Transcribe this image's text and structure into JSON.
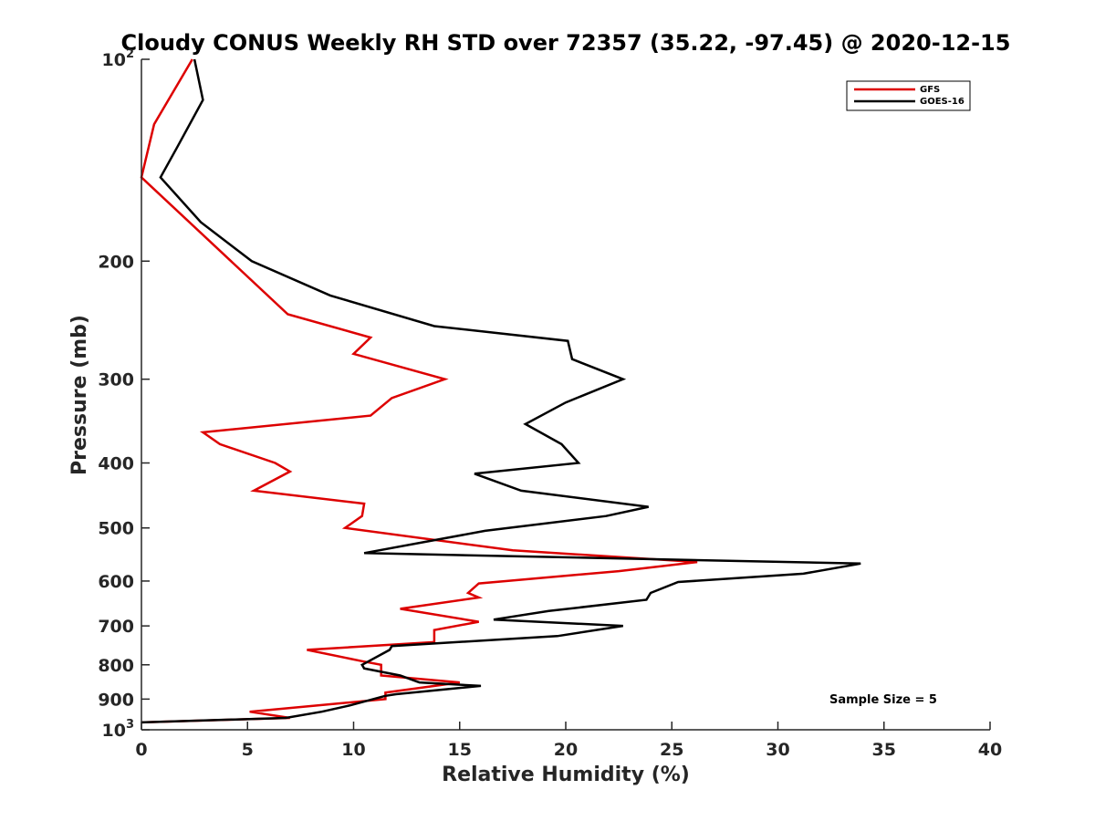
{
  "chart_data": {
    "type": "line",
    "title": "Cloudy CONUS Weekly RH STD over 72357 (35.22, -97.45) @ 2020-12-15",
    "xlabel": "Relative Humidity (%)",
    "ylabel": "Pressure (mb)",
    "xlim": [
      0,
      40
    ],
    "ylim": [
      100,
      1000
    ],
    "yscale": "log",
    "y_reversed": true,
    "x_ticks": [
      "0",
      "5",
      "10",
      "15",
      "20",
      "25",
      "30",
      "35",
      "40"
    ],
    "y_ticks": [
      {
        "value": 100,
        "label": "10",
        "exp": "2"
      },
      {
        "value": 200,
        "label": "200"
      },
      {
        "value": 300,
        "label": "300"
      },
      {
        "value": 400,
        "label": "400"
      },
      {
        "value": 500,
        "label": "500"
      },
      {
        "value": 600,
        "label": "600"
      },
      {
        "value": 700,
        "label": "700"
      },
      {
        "value": 800,
        "label": "800"
      },
      {
        "value": 900,
        "label": "900"
      },
      {
        "value": 1000,
        "label": "10",
        "exp": "3"
      }
    ],
    "legend_position": "top-right",
    "annotation": "Sample Size = 5",
    "series": [
      {
        "name": "GFS",
        "color": "#dd0000",
        "points": [
          [
            2.4,
            100
          ],
          [
            0.6,
            125
          ],
          [
            0,
            150
          ],
          [
            6.9,
            240
          ],
          [
            10.8,
            260
          ],
          [
            10.0,
            275
          ],
          [
            14.3,
            300
          ],
          [
            11.8,
            320
          ],
          [
            10.8,
            340
          ],
          [
            2.9,
            360
          ],
          [
            3.7,
            375
          ],
          [
            6.3,
            400
          ],
          [
            7.0,
            412
          ],
          [
            5.3,
            440
          ],
          [
            10.5,
            460
          ],
          [
            10.4,
            480
          ],
          [
            9.6,
            500
          ],
          [
            17.5,
            540
          ],
          [
            26.2,
            562
          ],
          [
            22.5,
            580
          ],
          [
            15.9,
            605
          ],
          [
            15.4,
            625
          ],
          [
            15.9,
            635
          ],
          [
            12.2,
            660
          ],
          [
            15.9,
            690
          ],
          [
            13.8,
            710
          ],
          [
            13.8,
            740
          ],
          [
            7.8,
            760
          ],
          [
            10.4,
            790
          ],
          [
            11.3,
            800
          ],
          [
            11.3,
            830
          ],
          [
            15.0,
            850
          ],
          [
            11.5,
            880
          ],
          [
            11.5,
            900
          ],
          [
            5.1,
            940
          ],
          [
            7.0,
            960
          ],
          [
            0,
            975
          ]
        ]
      },
      {
        "name": "GOES-16",
        "color": "#000000",
        "points": [
          [
            2.5,
            100
          ],
          [
            2.9,
            115
          ],
          [
            1.7,
            135
          ],
          [
            0.9,
            150
          ],
          [
            2.8,
            175
          ],
          [
            5.2,
            200
          ],
          [
            8.9,
            225
          ],
          [
            13.8,
            250
          ],
          [
            20.1,
            263
          ],
          [
            20.3,
            280
          ],
          [
            22.7,
            300
          ],
          [
            20.0,
            325
          ],
          [
            18.1,
            350
          ],
          [
            19.8,
            375
          ],
          [
            20.6,
            400
          ],
          [
            15.7,
            415
          ],
          [
            17.9,
            440
          ],
          [
            23.9,
            465
          ],
          [
            21.9,
            480
          ],
          [
            16.2,
            505
          ],
          [
            10.5,
            545
          ],
          [
            33.9,
            565
          ],
          [
            31.2,
            585
          ],
          [
            25.3,
            602
          ],
          [
            24.0,
            625
          ],
          [
            23.8,
            640
          ],
          [
            19.2,
            665
          ],
          [
            16.6,
            685
          ],
          [
            22.7,
            700
          ],
          [
            19.6,
            725
          ],
          [
            11.8,
            750
          ],
          [
            11.7,
            760
          ],
          [
            10.4,
            800
          ],
          [
            10.5,
            810
          ],
          [
            12.2,
            830
          ],
          [
            13.1,
            850
          ],
          [
            16.0,
            860
          ],
          [
            12.0,
            885
          ],
          [
            11.5,
            890
          ],
          [
            9.8,
            920
          ],
          [
            8.5,
            940
          ],
          [
            6.8,
            960
          ],
          [
            0,
            975
          ]
        ]
      }
    ]
  }
}
